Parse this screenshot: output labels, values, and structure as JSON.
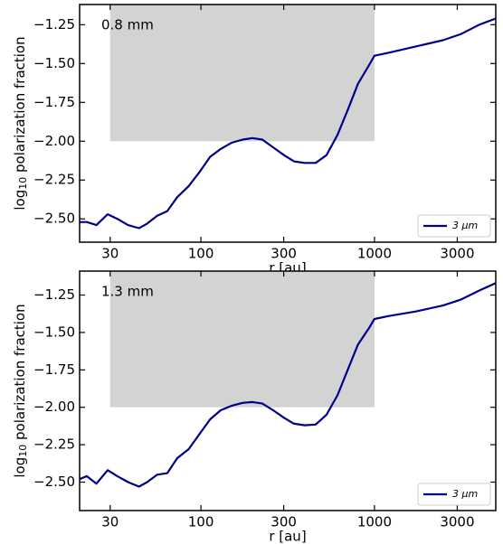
{
  "chart_data": [
    {
      "type": "line",
      "annotation": "0.8 mm",
      "xlabel": "r [au]",
      "ylabel": {
        "base": "log",
        "sub": "10",
        "rest": " polarization fraction"
      },
      "xscale": "log",
      "xlim": [
        20,
        5000
      ],
      "ylim": [
        -2.65,
        -1.12
      ],
      "xticks": [
        30,
        100,
        300,
        1000,
        3000
      ],
      "yticks": [
        {
          "value": -1.25,
          "label": "−1.25"
        },
        {
          "value": -1.5,
          "label": "−1.50"
        },
        {
          "value": -1.75,
          "label": "−1.75"
        },
        {
          "value": -2.0,
          "label": "−2.00"
        },
        {
          "value": -2.25,
          "label": "−2.25"
        },
        {
          "value": -2.5,
          "label": "−2.50"
        }
      ],
      "span": {
        "x": [
          30,
          1000
        ],
        "y_min": -2.0,
        "color": "#d3d3d3"
      },
      "legend": "lower right",
      "x": [
        20,
        22,
        25,
        29,
        33,
        38,
        44,
        49,
        56,
        64,
        73,
        85,
        98,
        113,
        130,
        150,
        174,
        198,
        226,
        261,
        301,
        344,
        397,
        458,
        529,
        612,
        707,
        804,
        931,
        1000,
        1210,
        1730,
        2480,
        3150,
        4020,
        5000
      ],
      "series": [
        {
          "name": "3 μm",
          "color": "#00008b",
          "values": [
            -2.52,
            -2.52,
            -2.54,
            -2.47,
            -2.5,
            -2.54,
            -2.56,
            -2.53,
            -2.48,
            -2.45,
            -2.36,
            -2.29,
            -2.2,
            -2.1,
            -2.05,
            -2.01,
            -1.99,
            -1.98,
            -1.99,
            -2.04,
            -2.09,
            -2.13,
            -2.14,
            -2.14,
            -2.09,
            -1.96,
            -1.79,
            -1.63,
            -1.51,
            -1.45,
            -1.43,
            -1.39,
            -1.35,
            -1.31,
            -1.25,
            -1.21
          ]
        }
      ]
    },
    {
      "type": "line",
      "annotation": "1.3 mm",
      "xlabel": "r [au]",
      "ylabel": {
        "base": "log",
        "sub": "10",
        "rest": " polarization fraction"
      },
      "xscale": "log",
      "xlim": [
        20,
        5000
      ],
      "ylim": [
        -2.69,
        -1.09
      ],
      "xticks": [
        30,
        100,
        300,
        1000,
        3000
      ],
      "yticks": [
        {
          "value": -1.25,
          "label": "−1.25"
        },
        {
          "value": -1.5,
          "label": "−1.50"
        },
        {
          "value": -1.75,
          "label": "−1.75"
        },
        {
          "value": -2.0,
          "label": "−2.00"
        },
        {
          "value": -2.25,
          "label": "−2.25"
        },
        {
          "value": -2.5,
          "label": "−2.50"
        }
      ],
      "span": {
        "x": [
          30,
          1000
        ],
        "y_min": -2.0,
        "color": "#d3d3d3"
      },
      "legend": "lower right",
      "x": [
        20,
        22,
        25,
        29,
        33,
        38,
        44,
        49,
        56,
        64,
        73,
        85,
        98,
        113,
        130,
        150,
        174,
        198,
        226,
        261,
        301,
        344,
        397,
        458,
        529,
        612,
        707,
        804,
        931,
        1000,
        1210,
        1730,
        2480,
        3150,
        4020,
        5000
      ],
      "series": [
        {
          "name": "3 μm",
          "color": "#00008b",
          "values": [
            -2.48,
            -2.46,
            -2.51,
            -2.42,
            -2.46,
            -2.5,
            -2.53,
            -2.5,
            -2.45,
            -2.44,
            -2.34,
            -2.28,
            -2.18,
            -2.08,
            -2.02,
            -1.99,
            -1.97,
            -1.965,
            -1.975,
            -2.02,
            -2.07,
            -2.11,
            -2.12,
            -2.115,
            -2.05,
            -1.92,
            -1.74,
            -1.58,
            -1.47,
            -1.41,
            -1.39,
            -1.36,
            -1.32,
            -1.28,
            -1.22,
            -1.17
          ]
        }
      ]
    }
  ]
}
